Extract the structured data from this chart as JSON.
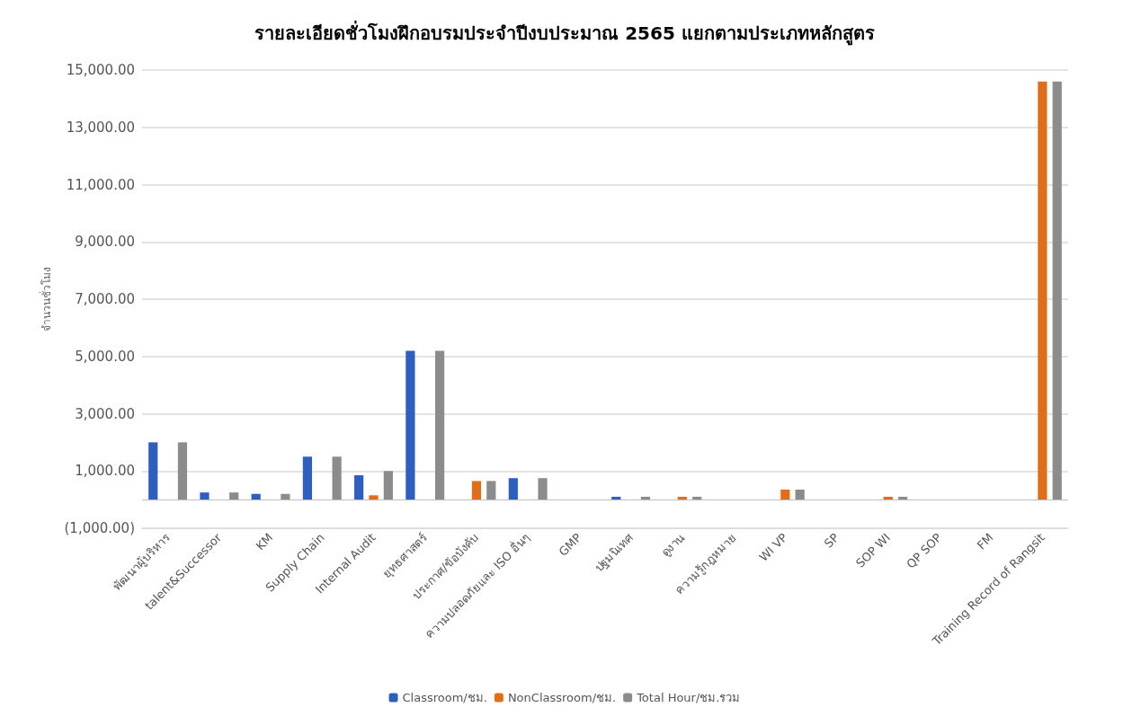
{
  "chart_data": {
    "type": "bar",
    "title": "รายละเอียดชั่วโมงฝึกอบรมประจำปีงบประมาณ 2565 แยกตามประเภทหลักสูตร",
    "ylabel": "จำนวนชั่วโมง",
    "categories": [
      "พัฒนาผู้บริหาร",
      "talent&Successor",
      "KM",
      "Supply Chain",
      "Internal Audit",
      "ยุทธศาสตร์",
      "ประกาศ/ข้อบังคับ",
      "ความปลอดภัยและ ISO อื่นๆ",
      "GMP",
      "ปฐมนิเทศ",
      "ดูงาน",
      "ความรู้กฎหมาย",
      "WI VP",
      "SP",
      "SOP WI",
      "QP SOP",
      "FM",
      "Training Record of Rangsit"
    ],
    "series": [
      {
        "name": "Classroom/ชม.",
        "color": "#2e5fbf",
        "values": [
          2000,
          250,
          200,
          1500,
          850,
          5200,
          0,
          750,
          0,
          100,
          0,
          0,
          0,
          0,
          0,
          0,
          0,
          0
        ]
      },
      {
        "name": "NonClassroom/ชม.",
        "color": "#e06d1a",
        "values": [
          0,
          0,
          0,
          0,
          150,
          0,
          650,
          0,
          0,
          0,
          100,
          0,
          350,
          0,
          100,
          0,
          0,
          14600
        ]
      },
      {
        "name": "Total Hour/ชม.รวม",
        "color": "#8c8c8c",
        "values": [
          2000,
          250,
          200,
          1500,
          1000,
          5200,
          650,
          750,
          0,
          100,
          100,
          0,
          350,
          0,
          100,
          0,
          0,
          14600
        ]
      }
    ],
    "ylim": [
      -1000,
      15000
    ],
    "yticks": [
      {
        "value": -1000,
        "label": "(1,000.00)"
      },
      {
        "value": 1000,
        "label": "1,000.00"
      },
      {
        "value": 3000,
        "label": "3,000.00"
      },
      {
        "value": 5000,
        "label": "5,000.00"
      },
      {
        "value": 7000,
        "label": "7,000.00"
      },
      {
        "value": 9000,
        "label": "9,000.00"
      },
      {
        "value": 11000,
        "label": "11,000.00"
      },
      {
        "value": 13000,
        "label": "13,000.00"
      },
      {
        "value": 15000,
        "label": "15,000.00"
      }
    ],
    "ref_lines": [
      {
        "axis": "y",
        "value": 0,
        "color": "#bfbfbf"
      }
    ],
    "grid": "y",
    "legend": "bottom"
  }
}
